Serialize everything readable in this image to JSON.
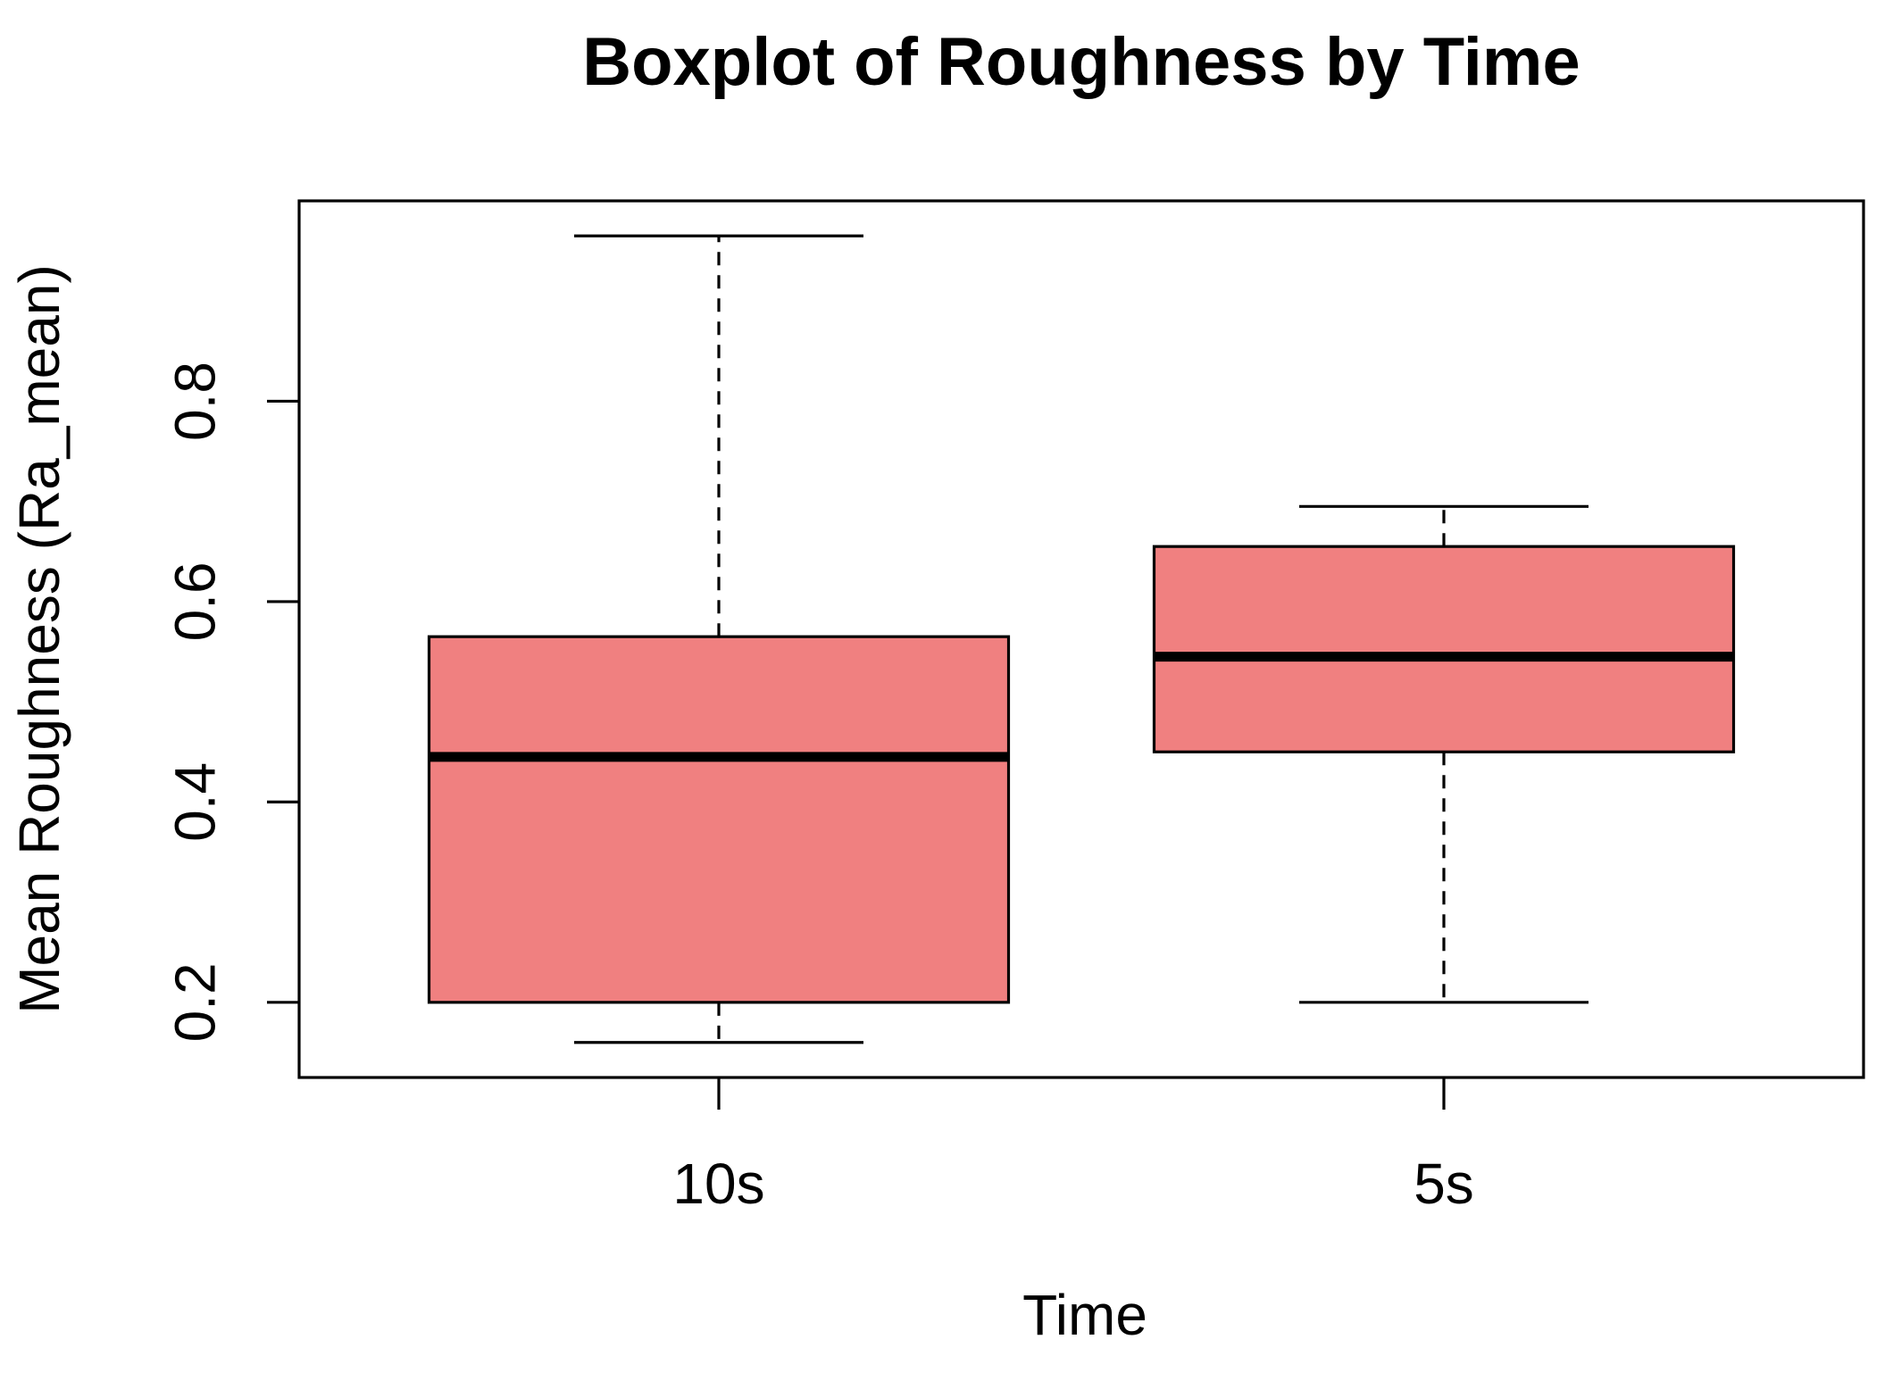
{
  "chart_data": {
    "type": "boxplot",
    "title": "Boxplot of Roughness by Time",
    "xlabel": "Time",
    "ylabel": "Mean Roughness (Ra_mean)",
    "categories": [
      "10s",
      "5s"
    ],
    "series": [
      {
        "name": "10s",
        "whisker_low": 0.16,
        "q1": 0.2,
        "median": 0.445,
        "q3": 0.565,
        "whisker_high": 0.965,
        "outliers": []
      },
      {
        "name": "5s",
        "whisker_low": 0.2,
        "q1": 0.45,
        "median": 0.545,
        "q3": 0.655,
        "whisker_high": 0.695,
        "outliers": []
      }
    ],
    "y_ticks": [
      {
        "value": 0.2,
        "label": "0.2"
      },
      {
        "value": 0.4,
        "label": "0.4"
      },
      {
        "value": 0.6,
        "label": "0.6"
      },
      {
        "value": 0.8,
        "label": "0.8"
      }
    ],
    "ylim": [
      0.125,
      1.0
    ],
    "grid": false,
    "legend": "none",
    "colors": {
      "box_fill": "#F08080",
      "line": "#000000",
      "background": "#FFFFFF",
      "text": "#000000"
    }
  }
}
